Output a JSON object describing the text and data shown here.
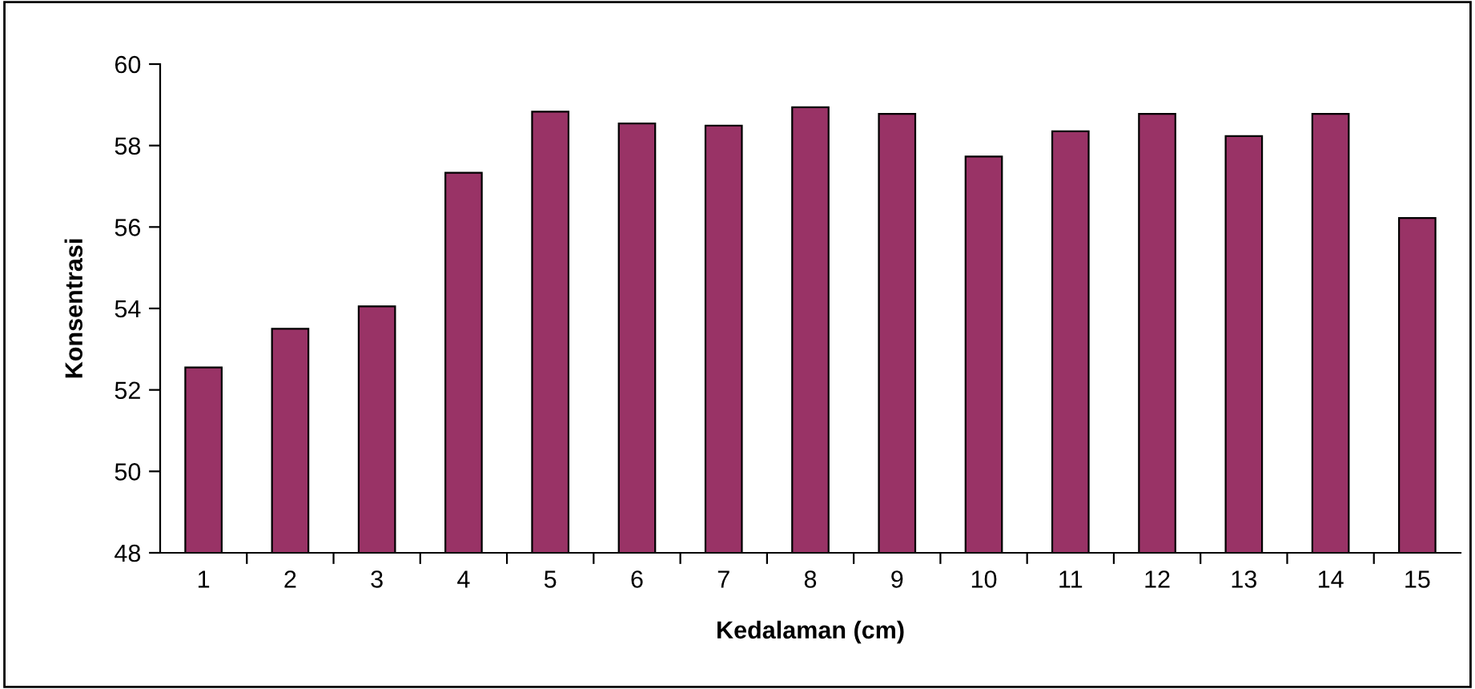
{
  "chart_data": {
    "type": "bar",
    "xlabel": "Kedalaman (cm)",
    "ylabel": "Konsentrasi",
    "categories": [
      "1",
      "2",
      "3",
      "4",
      "5",
      "6",
      "7",
      "8",
      "9",
      "10",
      "11",
      "12",
      "13",
      "14",
      "15"
    ],
    "values": [
      52.55,
      53.5,
      54.05,
      57.33,
      58.83,
      58.54,
      58.49,
      58.94,
      58.78,
      57.73,
      58.35,
      58.78,
      58.23,
      58.78,
      56.22
    ],
    "color": "#993366",
    "ylim": [
      48,
      60
    ],
    "yticks": [
      48,
      50,
      52,
      54,
      56,
      58,
      60
    ],
    "grid": false
  }
}
